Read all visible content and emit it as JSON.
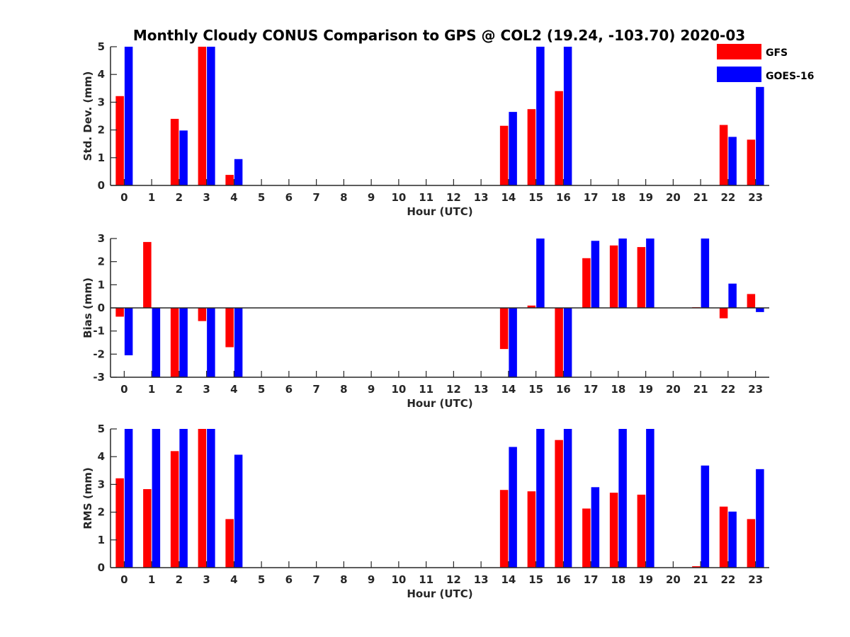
{
  "title": "Monthly Cloudy CONUS Comparison to GPS @ COL2 (19.24, -103.70) 2020-03",
  "colors": {
    "gfs": "#ff0000",
    "goes": "#0000ff",
    "axis": "#262626"
  },
  "legend": [
    {
      "label": "GFS",
      "color": "#ff0000"
    },
    {
      "label": "GOES-16",
      "color": "#0000ff"
    }
  ],
  "chart_data": [
    {
      "type": "bar",
      "xlabel": "Hour (UTC)",
      "ylabel": "Std. Dev. (mm)",
      "categories": [
        "0",
        "1",
        "2",
        "3",
        "4",
        "5",
        "6",
        "7",
        "8",
        "9",
        "10",
        "11",
        "12",
        "13",
        "14",
        "15",
        "16",
        "17",
        "18",
        "19",
        "20",
        "21",
        "22",
        "23"
      ],
      "ylim": [
        0,
        5
      ],
      "yticks": [
        "0",
        "1",
        "2",
        "3",
        "4",
        "5"
      ],
      "series": [
        {
          "name": "GFS",
          "values": [
            3.22,
            0,
            2.4,
            5,
            0.38,
            0,
            0,
            0,
            0,
            0,
            0,
            0,
            0,
            0,
            2.15,
            2.75,
            3.4,
            0,
            0,
            0,
            0,
            0,
            2.18,
            1.65
          ]
        },
        {
          "name": "GOES-16",
          "values": [
            5,
            0,
            1.98,
            5,
            0.95,
            0,
            0,
            0,
            0,
            0,
            0,
            0,
            0,
            0,
            2.65,
            5,
            5,
            0,
            0,
            0,
            0,
            0,
            1.75,
            3.55
          ]
        }
      ]
    },
    {
      "type": "bar",
      "xlabel": "Hour (UTC)",
      "ylabel": "Bias (mm)",
      "categories": [
        "0",
        "1",
        "2",
        "3",
        "4",
        "5",
        "6",
        "7",
        "8",
        "9",
        "10",
        "11",
        "12",
        "13",
        "14",
        "15",
        "16",
        "17",
        "18",
        "19",
        "20",
        "21",
        "22",
        "23"
      ],
      "ylim": [
        -3,
        3
      ],
      "yticks": [
        "-3",
        "-2",
        "-1",
        "0",
        "1",
        "2",
        "3"
      ],
      "series": [
        {
          "name": "GFS",
          "values": [
            -0.38,
            2.85,
            -3,
            -0.57,
            -1.7,
            0,
            0,
            0,
            0,
            0,
            0,
            0,
            0,
            0,
            -1.78,
            0.1,
            -3,
            2.15,
            2.7,
            2.63,
            0,
            0.03,
            -0.45,
            0.6
          ]
        },
        {
          "name": "GOES-16",
          "values": [
            -2.05,
            -3,
            -3,
            -3,
            -3,
            0,
            0,
            0,
            0,
            0,
            0,
            0,
            0,
            0,
            -3,
            3,
            -3,
            2.9,
            3,
            3,
            0,
            3,
            1.05,
            -0.18
          ]
        }
      ]
    },
    {
      "type": "bar",
      "xlabel": "Hour (UTC)",
      "ylabel": "RMS (mm)",
      "categories": [
        "0",
        "1",
        "2",
        "3",
        "4",
        "5",
        "6",
        "7",
        "8",
        "9",
        "10",
        "11",
        "12",
        "13",
        "14",
        "15",
        "16",
        "17",
        "18",
        "19",
        "20",
        "21",
        "22",
        "23"
      ],
      "ylim": [
        0,
        5
      ],
      "yticks": [
        "0",
        "1",
        "2",
        "3",
        "4",
        "5"
      ],
      "series": [
        {
          "name": "GFS",
          "values": [
            3.22,
            2.83,
            4.2,
            5,
            1.75,
            0,
            0,
            0,
            0,
            0,
            0,
            0,
            0,
            0,
            2.8,
            2.75,
            4.6,
            2.13,
            2.7,
            2.63,
            0,
            0.05,
            2.2,
            1.75
          ]
        },
        {
          "name": "GOES-16",
          "values": [
            5,
            5,
            5,
            5,
            4.07,
            0,
            0,
            0,
            0,
            0,
            0,
            0,
            0,
            0,
            4.35,
            5,
            5,
            2.9,
            5,
            5,
            0,
            3.68,
            2.02,
            3.55
          ]
        }
      ]
    }
  ]
}
